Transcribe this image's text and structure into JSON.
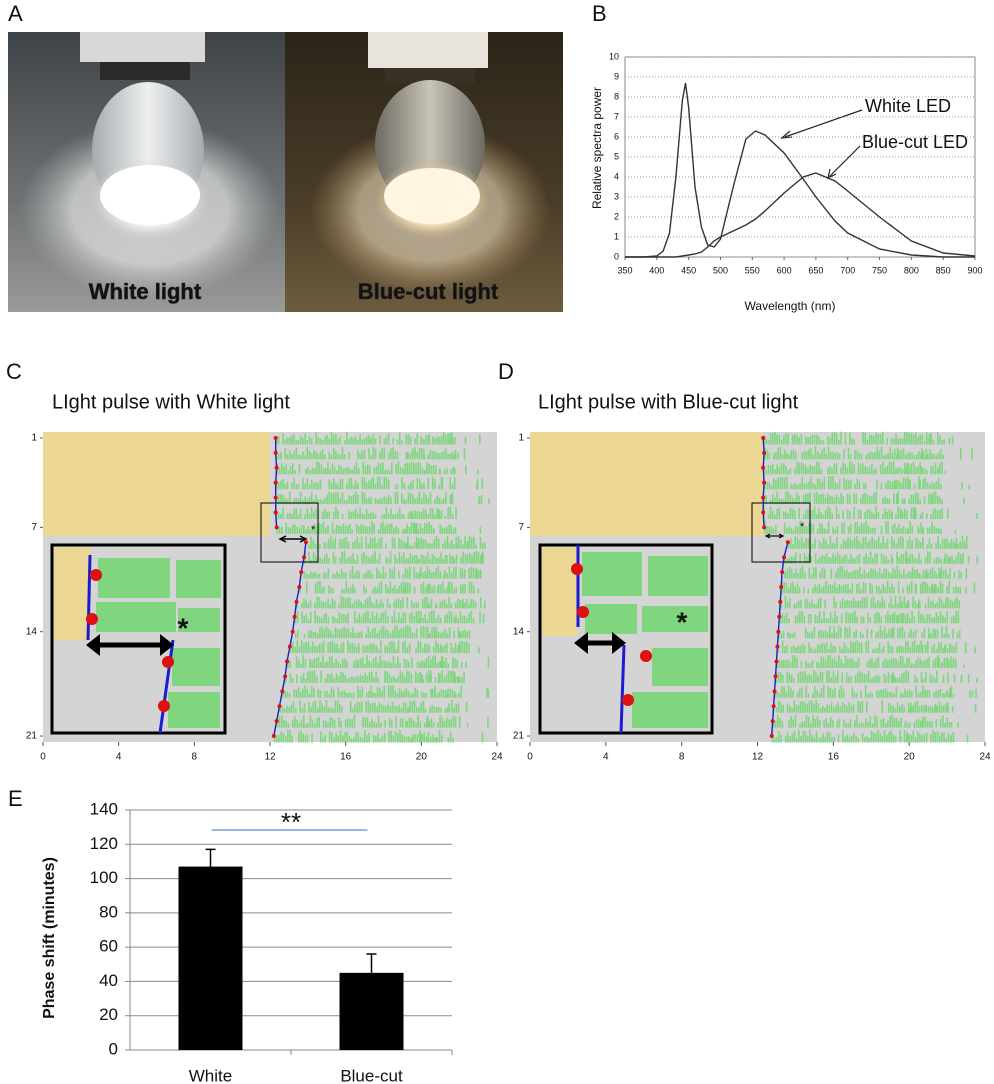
{
  "panels": {
    "letters": [
      "A",
      "B",
      "C",
      "D",
      "E"
    ],
    "photo_captions": [
      "White light",
      "Blue-cut light"
    ]
  },
  "chart_data": [
    {
      "type": "line",
      "xlabel": "Wavelength (nm)",
      "ylabel": "Relative spectra power",
      "annotations": [
        "White LED",
        "Blue-cut LED"
      ],
      "x": [
        350,
        380,
        400,
        410,
        420,
        430,
        440,
        445,
        450,
        460,
        470,
        480,
        490,
        500,
        520,
        540,
        555,
        570,
        600,
        630,
        650,
        680,
        700,
        750,
        800,
        850,
        900
      ],
      "series": [
        {
          "name": "White LED",
          "color": "#333333",
          "values": [
            0,
            0,
            0.05,
            0.3,
            1.2,
            4,
            7.8,
            8.7,
            7.5,
            3.5,
            1.5,
            0.6,
            0.5,
            0.9,
            3.5,
            5.9,
            6.3,
            6.1,
            5.2,
            3.9,
            3.0,
            1.8,
            1.2,
            0.4,
            0.1,
            0,
            0
          ]
        },
        {
          "name": "Blue-cut LED",
          "color": "#333333",
          "values": [
            0,
            0,
            0,
            0,
            0,
            0,
            0.05,
            0.08,
            0.1,
            0.15,
            0.25,
            0.5,
            0.8,
            1.0,
            1.3,
            1.6,
            1.9,
            2.3,
            3.2,
            4.0,
            4.2,
            3.8,
            3.3,
            2.0,
            0.8,
            0.2,
            0.05
          ]
        }
      ],
      "xlim": [
        350,
        900
      ],
      "xticks": [
        350,
        400,
        450,
        500,
        550,
        600,
        650,
        700,
        750,
        800,
        850,
        900
      ],
      "ylim": [
        0,
        10
      ],
      "yticks": [
        0,
        1,
        2,
        3,
        4,
        5,
        6,
        7,
        8,
        9,
        10
      ],
      "grid": true
    },
    {
      "type": "actogram",
      "title": "LIght pulse with White light",
      "annotation": "*",
      "days": [
        1,
        2,
        3,
        4,
        5,
        6,
        7,
        8,
        9,
        10,
        11,
        12,
        13,
        14,
        15,
        16,
        17,
        18,
        19,
        20,
        21
      ],
      "values": [
        12.3,
        12.3,
        12.35,
        12.3,
        12.3,
        12.3,
        12.35,
        13.9,
        13.8,
        13.65,
        13.55,
        13.4,
        13.3,
        13.2,
        13.05,
        12.9,
        12.8,
        12.65,
        12.5,
        12.35,
        12.2
      ],
      "dot_color": "#dd1111",
      "line_color": "#1c1cd0",
      "activity_color": "#7fd67f",
      "xlim": [
        0,
        24
      ],
      "xticks": [
        0,
        4,
        8,
        12,
        16,
        20,
        24
      ],
      "ylim": [
        0.6,
        21.4
      ],
      "yticks": [
        1,
        7,
        14,
        21
      ]
    },
    {
      "type": "actogram",
      "title": "LIght pulse with Blue-cut light",
      "annotation": "*",
      "days": [
        1,
        2,
        3,
        4,
        5,
        6,
        7,
        8,
        9,
        10,
        11,
        12,
        13,
        14,
        15,
        16,
        17,
        18,
        19,
        20,
        21
      ],
      "values": [
        12.3,
        12.35,
        12.3,
        12.35,
        12.3,
        12.3,
        12.35,
        13.6,
        13.4,
        13.3,
        13.25,
        13.2,
        13.15,
        13.1,
        13.05,
        13.0,
        12.95,
        12.9,
        12.85,
        12.8,
        12.75
      ],
      "dot_color": "#dd1111",
      "line_color": "#1c1cd0",
      "activity_color": "#7fd67f",
      "xlim": [
        0,
        24
      ],
      "xticks": [
        0,
        4,
        8,
        12,
        16,
        20,
        24
      ],
      "ylim": [
        0.6,
        21.4
      ],
      "yticks": [
        1,
        7,
        14,
        21
      ]
    },
    {
      "type": "bar",
      "ylabel": "Phase shift (minutes)",
      "categories": [
        "White",
        "Blue-cut"
      ],
      "values": [
        107,
        45
      ],
      "errors": [
        10,
        11
      ],
      "color": "#000000",
      "significance": "**",
      "significance_color": "#3a6fc4",
      "ylim": [
        0,
        140
      ],
      "yticks": [
        0,
        20,
        40,
        60,
        80,
        100,
        120,
        140
      ],
      "grid": true
    }
  ]
}
